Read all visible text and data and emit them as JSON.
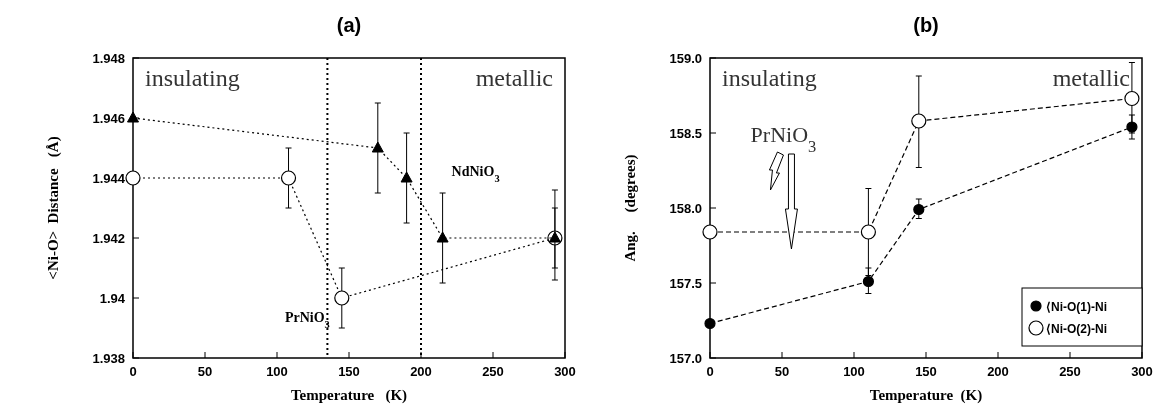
{
  "chart_data": [
    {
      "type": "line",
      "title": "(a)",
      "xlabel": "Temperature   (K)",
      "ylabel": "<Ni-O>  Distance   (Å)",
      "xlim": [
        0,
        300
      ],
      "xticks": [
        0,
        50,
        100,
        150,
        200,
        250,
        300
      ],
      "ylim": [
        1.938,
        1.948
      ],
      "yticks": [
        1.938,
        1.94,
        1.942,
        1.944,
        1.946,
        1.948
      ],
      "line_style": "dotted",
      "grid": false,
      "legend": false,
      "series": [
        {
          "name": "NdNiO$_{3}$",
          "color": "#000000",
          "marker": "triangle",
          "x": [
            0,
            170,
            190,
            215,
            293
          ],
          "values": [
            1.946,
            1.945,
            1.944,
            1.942,
            1.942
          ],
          "errors": [
            null,
            [
              1.9435,
              1.9465
            ],
            [
              1.9425,
              1.9455
            ],
            [
              1.9405,
              1.9435
            ],
            [
              1.9406,
              1.9436
            ]
          ]
        },
        {
          "name": "PrNiO$_{3}$",
          "color": "#000000",
          "marker": "circle",
          "x": [
            0,
            108,
            145,
            293
          ],
          "values": [
            1.944,
            1.944,
            1.94,
            1.942
          ],
          "errors": [
            null,
            [
              1.943,
              1.945
            ],
            [
              1.939,
              1.941
            ],
            [
              1.941,
              1.943
            ]
          ]
        }
      ],
      "ref_lines": [
        {
          "axis": "x",
          "value": 135,
          "line_style": "dotted"
        },
        {
          "axis": "x",
          "value": 200,
          "line_style": "dotted"
        }
      ],
      "annotations": [
        "insulating",
        "metallic"
      ]
    },
    {
      "type": "line",
      "title": "(b)",
      "xlabel": "Temperature  (K)",
      "ylabel": "Ang.     (degrees)",
      "xlim": [
        0,
        300
      ],
      "xticks": [
        0,
        50,
        100,
        150,
        200,
        250,
        300
      ],
      "ylim": [
        157.0,
        159.0
      ],
      "yticks": [
        {
          "value": 157,
          "label": "157.0"
        },
        157.5,
        {
          "value": 158,
          "label": "158.0"
        },
        158.5,
        {
          "value": 159,
          "label": "159.0"
        }
      ],
      "line_style": "dashed",
      "grid": false,
      "legend": "bottom right",
      "series": [
        {
          "name": "⟨Ni-O(1)-Ni",
          "color": "#000000",
          "marker": "circle",
          "x": [
            0,
            110,
            145,
            293
          ],
          "values": [
            157.23,
            157.51,
            157.99,
            158.54
          ],
          "errors": [
            null,
            [
              157.43,
              157.6
            ],
            [
              157.93,
              158.06
            ],
            [
              158.46,
              158.62
            ]
          ]
        },
        {
          "name": "⟨Ni-O(2)-Ni",
          "color": "#000000",
          "marker": "circle",
          "x": [
            0,
            110,
            145,
            293
          ],
          "values": [
            157.84,
            157.84,
            158.58,
            158.73
          ],
          "errors": [
            null,
            [
              157.55,
              158.13
            ],
            [
              158.27,
              158.88
            ],
            [
              158.5,
              158.97
            ]
          ]
        }
      ],
      "annotations": [
        "insulating",
        "metallic",
        "PrNiO$_{3}$"
      ]
    }
  ]
}
